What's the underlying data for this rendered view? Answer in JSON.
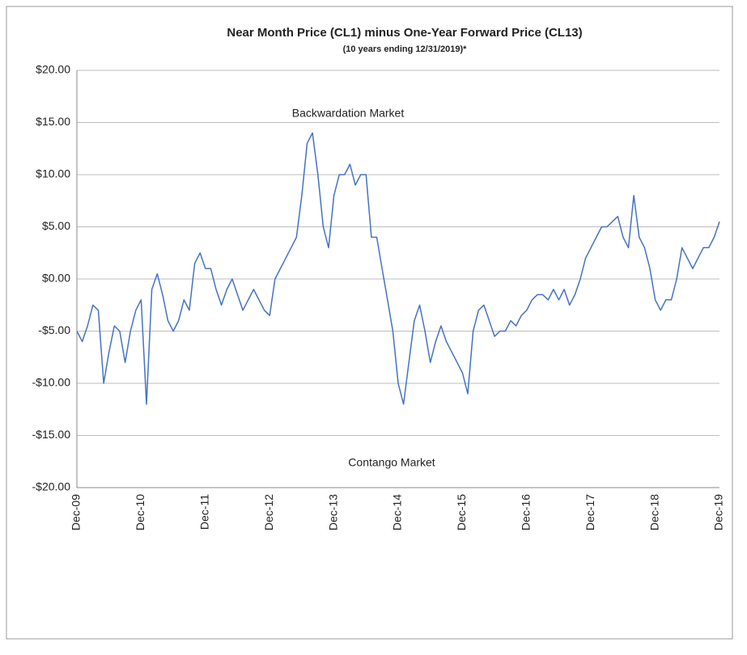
{
  "chart_data": {
    "type": "line",
    "title": "Near Month Price (CL1) minus One-Year Forward Price (CL13)",
    "subtitle": "(10 years ending 12/31/2019)*",
    "annotations": [
      "Backwardation Market",
      "Contango Market"
    ],
    "categories": [
      "Dec-09",
      null,
      null,
      null,
      null,
      null,
      null,
      null,
      null,
      null,
      null,
      null,
      "Dec-10",
      null,
      null,
      null,
      null,
      null,
      null,
      null,
      null,
      null,
      null,
      null,
      "Dec-11",
      null,
      null,
      null,
      null,
      null,
      null,
      null,
      null,
      null,
      null,
      null,
      "Dec-12",
      null,
      null,
      null,
      null,
      null,
      null,
      null,
      null,
      null,
      null,
      null,
      "Dec-13",
      null,
      null,
      null,
      null,
      null,
      null,
      null,
      null,
      null,
      null,
      null,
      "Dec-14",
      null,
      null,
      null,
      null,
      null,
      null,
      null,
      null,
      null,
      null,
      null,
      "Dec-15",
      null,
      null,
      null,
      null,
      null,
      null,
      null,
      null,
      null,
      null,
      null,
      "Dec-16",
      null,
      null,
      null,
      null,
      null,
      null,
      null,
      null,
      null,
      null,
      null,
      "Dec-17",
      null,
      null,
      null,
      null,
      null,
      null,
      null,
      null,
      null,
      null,
      null,
      "Dec-18",
      null,
      null,
      null,
      null,
      null,
      null,
      null,
      null,
      null,
      null,
      null,
      "Dec-19"
    ],
    "series": [
      {
        "name": "CL1 minus CL13",
        "color": "#4472c4",
        "values": [
          -5,
          -6,
          -4.5,
          -2.5,
          -3,
          -10,
          -7,
          -4.5,
          -5,
          -8,
          -5,
          -3,
          -2,
          -12,
          -1,
          0.5,
          -1.5,
          -4,
          -5,
          -4,
          -2,
          -3,
          1.5,
          2.5,
          1,
          1,
          -1,
          -2.5,
          -1,
          0,
          -1.5,
          -3,
          -2,
          -1,
          -2,
          -3,
          -3.5,
          0,
          1,
          2,
          3,
          4,
          8,
          13,
          14,
          10,
          5,
          3,
          8,
          10,
          10,
          11,
          9,
          10,
          10,
          4,
          4,
          1,
          -2,
          -5,
          -10,
          -12,
          -8,
          -4,
          -2.5,
          -5,
          -8,
          -6,
          -4.5,
          -6,
          -7,
          -8,
          -9,
          -11,
          -5,
          -3,
          -2.5,
          -4,
          -5.5,
          -5,
          -5,
          -4,
          -4.5,
          -3.5,
          -3,
          -2,
          -1.5,
          -1.5,
          -2,
          -1,
          -2,
          -1,
          -2.5,
          -1.5,
          0,
          2,
          3,
          4,
          5,
          5,
          5.5,
          6,
          4,
          3,
          8,
          4,
          3,
          1,
          -2,
          -3,
          -2,
          -2,
          0,
          3,
          2,
          1,
          2,
          3,
          3,
          4,
          5.5
        ]
      }
    ],
    "ylim": [
      -20,
      20
    ],
    "yticks": [
      {
        "value": -20,
        "label": "-$20.00"
      },
      {
        "value": -15,
        "label": "-$15.00"
      },
      {
        "value": -10,
        "label": "-$10.00"
      },
      {
        "value": -5,
        "label": "-$5.00"
      },
      {
        "value": 0,
        "label": "$0.00"
      },
      {
        "value": 5,
        "label": "$5.00"
      },
      {
        "value": 10,
        "label": "$10.00"
      },
      {
        "value": 15,
        "label": "$15.00"
      },
      {
        "value": 20,
        "label": "$20.00"
      }
    ],
    "grid": true
  }
}
